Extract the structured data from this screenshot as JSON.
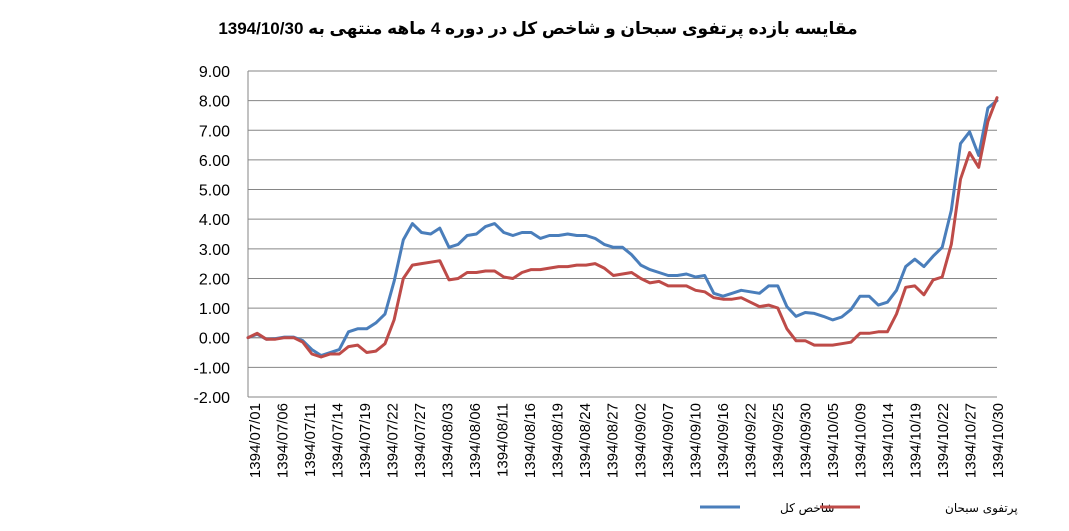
{
  "chart_data": {
    "type": "line",
    "title": "مقایسه بازده پرتفوی سبحان و شاخص کل در دوره 4 ماهه منتهی به 1394/10/30",
    "xlabel": "",
    "ylabel": "",
    "ylim": [
      -2,
      9
    ],
    "ytick_labels": [
      "-2.00",
      "-1.00",
      "0.00",
      "1.00",
      "2.00",
      "3.00",
      "4.00",
      "5.00",
      "6.00",
      "7.00",
      "8.00",
      "9.00"
    ],
    "grid": "horizontal",
    "legend_position": "bottom",
    "x_tick_labels": [
      "1394/07/01",
      "1394/07/06",
      "1394/07/11",
      "1394/07/14",
      "1394/07/19",
      "1394/07/22",
      "1394/07/27",
      "1394/08/03",
      "1394/08/06",
      "1394/08/11",
      "1394/08/16",
      "1394/08/19",
      "1394/08/24",
      "1394/08/27",
      "1394/09/02",
      "1394/09/07",
      "1394/09/10",
      "1394/09/16",
      "1394/09/22",
      "1394/09/25",
      "1394/09/30",
      "1394/10/05",
      "1394/10/09",
      "1394/10/14",
      "1394/10/19",
      "1394/10/22",
      "1394/10/27",
      "1394/10/30"
    ],
    "series": [
      {
        "name": "شاخص کل",
        "color": "#4a7ebb",
        "values": [
          0.0,
          0.12,
          -0.05,
          -0.03,
          0.02,
          0.02,
          -0.1,
          -0.4,
          -0.6,
          -0.5,
          -0.4,
          0.2,
          0.3,
          0.3,
          0.5,
          0.8,
          1.9,
          3.3,
          3.85,
          3.55,
          3.5,
          3.7,
          3.05,
          3.15,
          3.45,
          3.5,
          3.75,
          3.85,
          3.55,
          3.45,
          3.55,
          3.55,
          3.35,
          3.45,
          3.45,
          3.5,
          3.45,
          3.45,
          3.35,
          3.15,
          3.05,
          3.05,
          2.8,
          2.45,
          2.3,
          2.2,
          2.1,
          2.1,
          2.15,
          2.05,
          2.1,
          1.5,
          1.4,
          1.5,
          1.6,
          1.55,
          1.5,
          1.75,
          1.75,
          1.05,
          0.72,
          0.85,
          0.82,
          0.72,
          0.6,
          0.7,
          0.95,
          1.4,
          1.4,
          1.1,
          1.2,
          1.6,
          2.4,
          2.65,
          2.4,
          2.75,
          3.05,
          4.3,
          6.55,
          6.95,
          6.15,
          7.75,
          8.0
        ]
      },
      {
        "name": "پرتفوی سبحان",
        "color": "#be4b48",
        "values": [
          0.0,
          0.15,
          -0.05,
          -0.05,
          0.0,
          0.0,
          -0.15,
          -0.55,
          -0.65,
          -0.55,
          -0.55,
          -0.3,
          -0.25,
          -0.5,
          -0.45,
          -0.2,
          0.6,
          2.0,
          2.45,
          2.5,
          2.55,
          2.6,
          1.95,
          2.0,
          2.2,
          2.2,
          2.25,
          2.25,
          2.05,
          2.0,
          2.2,
          2.3,
          2.3,
          2.35,
          2.4,
          2.4,
          2.45,
          2.45,
          2.5,
          2.35,
          2.1,
          2.15,
          2.2,
          2.0,
          1.85,
          1.9,
          1.75,
          1.75,
          1.75,
          1.6,
          1.55,
          1.35,
          1.3,
          1.3,
          1.35,
          1.2,
          1.05,
          1.1,
          1.0,
          0.3,
          -0.1,
          -0.1,
          -0.25,
          -0.25,
          -0.25,
          -0.2,
          -0.15,
          0.15,
          0.15,
          0.2,
          0.2,
          0.8,
          1.7,
          1.75,
          1.45,
          1.95,
          2.05,
          3.15,
          5.35,
          6.25,
          5.75,
          7.3,
          8.1
        ]
      }
    ]
  }
}
